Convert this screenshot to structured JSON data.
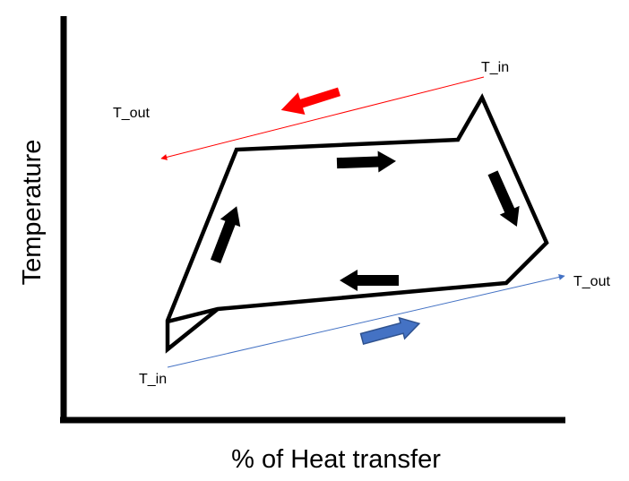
{
  "axes": {
    "x_label": "% of Heat transfer",
    "y_label": "Temperature"
  },
  "hot_stream": {
    "inlet_label": "T_in",
    "outlet_label": "T_out",
    "color": "#ff0000"
  },
  "cold_stream": {
    "inlet_label": "T_in",
    "outlet_label": "T_out",
    "color": "#4472c4"
  },
  "cycle": {
    "color": "#000000"
  }
}
